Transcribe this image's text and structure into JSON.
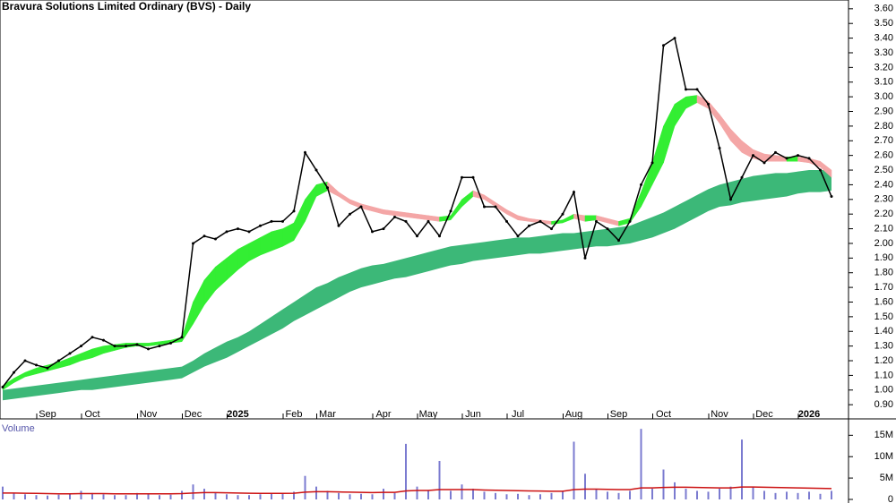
{
  "chart_data": [
    {
      "type": "line",
      "title": "Bravura Solutions Limited Ordinary (BVS) - Daily",
      "categories": [
        null,
        null,
        null,
        null,
        "Sep",
        null,
        null,
        null,
        "Oct",
        null,
        null,
        null,
        null,
        "Nov",
        null,
        null,
        null,
        "Dec",
        null,
        null,
        null,
        "2025",
        null,
        null,
        null,
        null,
        "Feb",
        null,
        null,
        "Mar",
        null,
        null,
        null,
        null,
        "Apr",
        null,
        null,
        null,
        "May",
        null,
        null,
        null,
        "Jun",
        null,
        null,
        null,
        "Jul",
        null,
        null,
        null,
        null,
        "Aug",
        null,
        null,
        null,
        "Sep",
        null,
        null,
        null,
        "Oct",
        null,
        null,
        null,
        null,
        "Nov",
        null,
        null,
        null,
        "Dec",
        null,
        null,
        null,
        "2026",
        null,
        null
      ],
      "values": [
        1.02,
        1.12,
        1.2,
        1.17,
        1.15,
        1.2,
        1.25,
        1.3,
        1.36,
        1.34,
        1.3,
        1.3,
        1.31,
        1.28,
        1.3,
        1.32,
        1.36,
        2.0,
        2.05,
        2.03,
        2.08,
        2.1,
        2.08,
        2.12,
        2.15,
        2.15,
        2.22,
        2.62,
        2.5,
        2.38,
        2.12,
        2.2,
        2.25,
        2.08,
        2.1,
        2.18,
        2.15,
        2.05,
        2.15,
        2.05,
        2.22,
        2.45,
        2.45,
        2.25,
        2.25,
        2.15,
        2.05,
        2.12,
        2.15,
        2.1,
        2.2,
        2.35,
        1.9,
        2.15,
        2.1,
        2.02,
        2.15,
        2.4,
        2.55,
        3.35,
        3.4,
        3.05,
        3.05,
        2.95,
        2.65,
        2.3,
        2.45,
        2.6,
        2.55,
        2.62,
        2.58,
        2.6,
        2.58,
        2.5,
        2.32
      ],
      "color": "#000000",
      "bands": [
        {
          "color": "#3cb878",
          "lower": [
            0.93,
            0.94,
            0.95,
            0.96,
            0.97,
            0.98,
            0.99,
            1.0,
            1.0,
            1.01,
            1.02,
            1.03,
            1.04,
            1.05,
            1.06,
            1.07,
            1.08,
            1.12,
            1.16,
            1.19,
            1.22,
            1.26,
            1.3,
            1.34,
            1.38,
            1.42,
            1.47,
            1.51,
            1.55,
            1.59,
            1.63,
            1.67,
            1.7,
            1.72,
            1.74,
            1.76,
            1.77,
            1.79,
            1.81,
            1.83,
            1.85,
            1.86,
            1.88,
            1.89,
            1.9,
            1.91,
            1.92,
            1.93,
            1.93,
            1.94,
            1.95,
            1.96,
            1.97,
            1.98,
            1.98,
            1.99,
            2.0,
            2.02,
            2.04,
            2.07,
            2.1,
            2.14,
            2.18,
            2.22,
            2.25,
            2.26,
            2.28,
            2.29,
            2.3,
            2.31,
            2.32,
            2.34,
            2.35,
            2.35,
            2.36
          ],
          "upper": [
            1.0,
            1.01,
            1.02,
            1.03,
            1.04,
            1.05,
            1.06,
            1.07,
            1.08,
            1.09,
            1.1,
            1.11,
            1.12,
            1.13,
            1.14,
            1.15,
            1.16,
            1.2,
            1.25,
            1.29,
            1.33,
            1.36,
            1.4,
            1.45,
            1.5,
            1.55,
            1.6,
            1.65,
            1.7,
            1.73,
            1.77,
            1.8,
            1.83,
            1.85,
            1.86,
            1.88,
            1.9,
            1.92,
            1.94,
            1.96,
            1.98,
            1.99,
            2.0,
            2.01,
            2.02,
            2.03,
            2.04,
            2.04,
            2.05,
            2.06,
            2.07,
            2.07,
            2.08,
            2.09,
            2.1,
            2.11,
            2.12,
            2.15,
            2.18,
            2.21,
            2.25,
            2.29,
            2.33,
            2.37,
            2.4,
            2.42,
            2.44,
            2.46,
            2.47,
            2.48,
            2.48,
            2.49,
            2.5,
            2.5,
            2.5
          ]
        },
        {
          "color": "#33ee33",
          "falling_color": "#f4a6a6",
          "lower": [
            1.0,
            1.05,
            1.09,
            1.11,
            1.13,
            1.15,
            1.17,
            1.2,
            1.22,
            1.25,
            1.27,
            1.29,
            1.3,
            1.3,
            1.31,
            1.32,
            1.33,
            1.45,
            1.58,
            1.68,
            1.75,
            1.82,
            1.88,
            1.92,
            1.95,
            1.98,
            2.02,
            2.15,
            2.32,
            2.36,
            2.32,
            2.27,
            2.24,
            2.22,
            2.2,
            2.19,
            2.18,
            2.17,
            2.16,
            2.15,
            2.16,
            2.25,
            2.32,
            2.3,
            2.25,
            2.2,
            2.16,
            2.15,
            2.14,
            2.13,
            2.14,
            2.17,
            2.15,
            2.16,
            2.14,
            2.12,
            2.14,
            2.25,
            2.4,
            2.55,
            2.8,
            2.92,
            2.96,
            2.92,
            2.82,
            2.7,
            2.62,
            2.58,
            2.56,
            2.56,
            2.56,
            2.56,
            2.55,
            2.52,
            2.45
          ],
          "upper": [
            1.03,
            1.08,
            1.12,
            1.15,
            1.17,
            1.19,
            1.22,
            1.25,
            1.28,
            1.3,
            1.31,
            1.32,
            1.32,
            1.32,
            1.33,
            1.34,
            1.36,
            1.6,
            1.75,
            1.84,
            1.9,
            1.96,
            2.0,
            2.04,
            2.08,
            2.1,
            2.14,
            2.3,
            2.4,
            2.42,
            2.35,
            2.3,
            2.27,
            2.25,
            2.23,
            2.22,
            2.21,
            2.2,
            2.19,
            2.18,
            2.19,
            2.3,
            2.36,
            2.33,
            2.28,
            2.23,
            2.19,
            2.17,
            2.16,
            2.15,
            2.16,
            2.2,
            2.19,
            2.19,
            2.17,
            2.15,
            2.17,
            2.35,
            2.55,
            2.8,
            2.95,
            3.0,
            3.01,
            2.97,
            2.88,
            2.78,
            2.7,
            2.64,
            2.61,
            2.6,
            2.59,
            2.59,
            2.58,
            2.56,
            2.5
          ]
        }
      ],
      "ylim": [
        0.84,
        3.66
      ],
      "yticks": [
        {
          "value": 0.9,
          "label": "0.90"
        },
        {
          "value": 1.0,
          "label": "1.00"
        },
        {
          "value": 1.1,
          "label": "1.10"
        },
        {
          "value": 1.2,
          "label": "1.20"
        },
        {
          "value": 1.3,
          "label": "1.30"
        },
        {
          "value": 1.4,
          "label": "1.40"
        },
        {
          "value": 1.5,
          "label": "1.50"
        },
        {
          "value": 1.6,
          "label": "1.60"
        },
        {
          "value": 1.7,
          "label": "1.70"
        },
        {
          "value": 1.8,
          "label": "1.80"
        },
        {
          "value": 1.9,
          "label": "1.90"
        },
        {
          "value": 2.0,
          "label": "2.00"
        },
        {
          "value": 2.1,
          "label": "2.10"
        },
        {
          "value": 2.2,
          "label": "2.20"
        },
        {
          "value": 2.3,
          "label": "2.30"
        },
        {
          "value": 2.4,
          "label": "2.40"
        },
        {
          "value": 2.5,
          "label": "2.50"
        },
        {
          "value": 2.6,
          "label": "2.60"
        },
        {
          "value": 2.7,
          "label": "2.70"
        },
        {
          "value": 2.8,
          "label": "2.80"
        },
        {
          "value": 2.9,
          "label": "2.90"
        },
        {
          "value": 3.0,
          "label": "3.00"
        },
        {
          "value": 3.1,
          "label": "3.10"
        },
        {
          "value": 3.2,
          "label": "3.20"
        },
        {
          "value": 3.3,
          "label": "3.30"
        },
        {
          "value": 3.4,
          "label": "3.40"
        },
        {
          "value": 3.5,
          "label": "3.50"
        },
        {
          "value": 3.6,
          "label": "3.60"
        }
      ]
    },
    {
      "type": "bar",
      "title": "Volume",
      "values": [
        3000000,
        1500000,
        1200000,
        1000000,
        900000,
        1100000,
        1300000,
        2000000,
        1500000,
        1200000,
        1000000,
        1000000,
        1500000,
        1200000,
        1000000,
        1100000,
        2000000,
        3500000,
        2500000,
        1500000,
        1200000,
        1000000,
        1000000,
        1200000,
        1300000,
        1500000,
        1800000,
        5500000,
        3000000,
        2000000,
        1500000,
        1200000,
        1300000,
        1200000,
        2500000,
        1500000,
        13000000,
        3000000,
        2000000,
        9000000,
        2000000,
        3500000,
        2500000,
        1800000,
        1500000,
        1200000,
        1300000,
        1000000,
        1200000,
        1500000,
        2000000,
        13500000,
        6000000,
        2500000,
        1800000,
        1500000,
        2000000,
        16500000,
        2500000,
        7000000,
        4000000,
        2500000,
        2000000,
        1800000,
        2500000,
        3000000,
        14000000,
        3000000,
        2000000,
        1500000,
        1800000,
        1500000,
        1800000,
        1300000,
        2000000
      ],
      "color": "#7b7bd0",
      "average": [
        1500000,
        1500000,
        1450000,
        1400000,
        1350000,
        1300000,
        1300000,
        1350000,
        1350000,
        1350000,
        1300000,
        1300000,
        1300000,
        1300000,
        1300000,
        1300000,
        1350000,
        1500000,
        1600000,
        1600000,
        1550000,
        1500000,
        1450000,
        1400000,
        1400000,
        1400000,
        1450000,
        1700000,
        1800000,
        1800000,
        1750000,
        1700000,
        1650000,
        1600000,
        1650000,
        1650000,
        2000000,
        2100000,
        2100000,
        2300000,
        2300000,
        2300000,
        2300000,
        2200000,
        2150000,
        2100000,
        2050000,
        2000000,
        1950000,
        1900000,
        1900000,
        2300000,
        2400000,
        2400000,
        2350000,
        2300000,
        2300000,
        2700000,
        2700000,
        2800000,
        2850000,
        2850000,
        2800000,
        2750000,
        2700000,
        2700000,
        2900000,
        2900000,
        2850000,
        2800000,
        2750000,
        2700000,
        2650000,
        2600000,
        2550000
      ],
      "average_color": "#cc1111",
      "ylim": [
        0,
        18000000
      ],
      "yticks": [
        0,
        {
          "value": 5000000,
          "label": "5M"
        },
        {
          "value": 10000000,
          "label": "10M"
        },
        {
          "value": 15000000,
          "label": "15M"
        }
      ]
    }
  ]
}
